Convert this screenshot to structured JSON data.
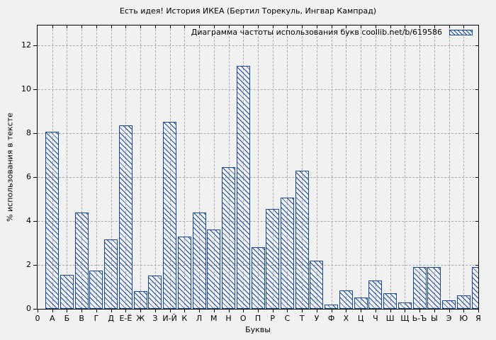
{
  "title": "Есть идея! История ИКЕА (Бертил Торекуль, Ингвар Кампрад)",
  "colors": {
    "bar_blue": "#17479e",
    "background": "#f1f1f1",
    "grid_gray": "#a9a9a9",
    "axis_black": "#000000"
  },
  "chart_data": {
    "type": "bar",
    "title": "Есть идея! История ИКЕА (Бертил Торекуль, Ингвар Кампрад)",
    "legend": "Диаграмма частоты использования букв coollib.net/b/619586",
    "legend_position": "top-right-inside",
    "xlabel": "Буквы",
    "ylabel": "% использования в тексте",
    "origin_tick_label": "0",
    "ylim": [
      0,
      12.9
    ],
    "yticks": [
      0,
      2,
      4,
      6,
      8,
      10,
      12
    ],
    "grid": true,
    "bar_style": "diagonal-hatch",
    "bar_color": "#17479e",
    "categories": [
      "А",
      "Б",
      "В",
      "Г",
      "Д",
      "Е-Ё",
      "Ж",
      "З",
      "И-Й",
      "К",
      "Л",
      "М",
      "Н",
      "О",
      "П",
      "Р",
      "С",
      "Т",
      "У",
      "Ф",
      "Х",
      "Ц",
      "Ч",
      "Ш",
      "Щ",
      "Ь-Ъ",
      "Ы",
      "Э",
      "Ю",
      "Я"
    ],
    "values": [
      8.05,
      1.55,
      4.4,
      1.75,
      3.15,
      8.35,
      0.8,
      1.5,
      8.5,
      3.3,
      4.4,
      3.6,
      6.45,
      11.05,
      2.8,
      4.55,
      5.05,
      6.3,
      2.2,
      0.2,
      0.85,
      0.5,
      1.3,
      0.7,
      0.3,
      1.9,
      1.9,
      0.4,
      0.6,
      1.9
    ]
  }
}
